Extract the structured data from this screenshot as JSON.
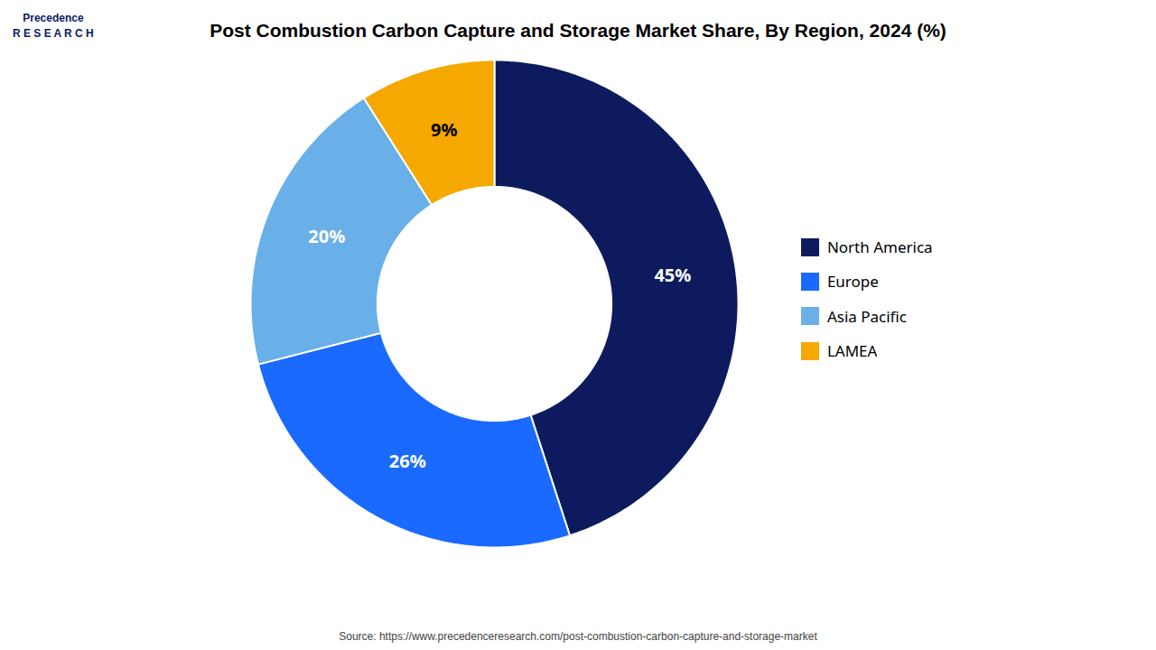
{
  "chart_data": {
    "type": "pie",
    "title": "Post Combustion Carbon Capture and Storage Market Share, By Region, 2024 (%)",
    "caption": "Source: https://www.precedenceresearch.com/post-combustion-carbon-capture-and-storage-market",
    "annotations": [
      "Precedence\nR E S E A R C H"
    ],
    "categories": [
      "North America",
      "Europe",
      "Asia Pacific",
      "LAMEA"
    ],
    "values": [
      45,
      26,
      20,
      9
    ],
    "value_labels": [
      "45%",
      "26%",
      "20%",
      "9%"
    ],
    "colors": [
      "#0d1b5e",
      "#1a6aff",
      "#6ab0e8",
      "#f5a800"
    ],
    "label_colors": [
      "white",
      "white",
      "white",
      "black"
    ],
    "data_labels": true,
    "legend": "right"
  }
}
